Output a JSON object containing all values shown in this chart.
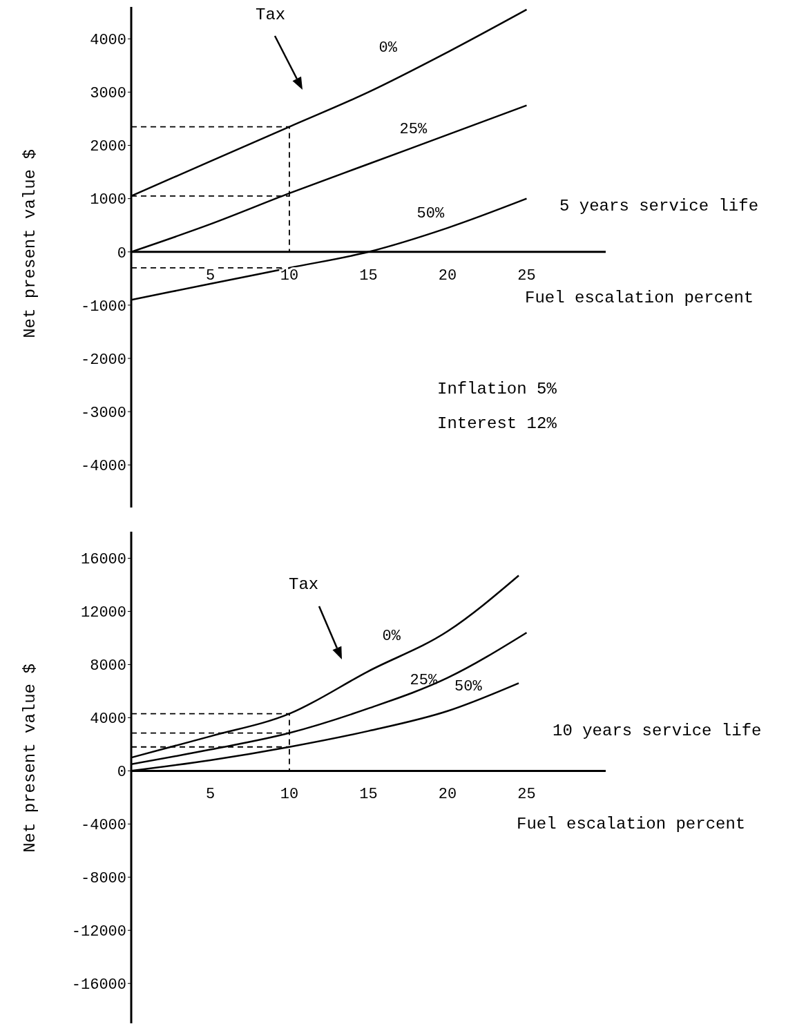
{
  "chart_data": [
    {
      "type": "line",
      "xlabel": "Fuel escalation percent",
      "ylabel": "Net present value $",
      "xlim": [
        0,
        30
      ],
      "xticks": [
        5,
        10,
        15,
        20,
        25
      ],
      "ylim": [
        -4800,
        4600
      ],
      "yticks": [
        -4000,
        -3000,
        -2000,
        -1000,
        0,
        1000,
        2000,
        3000,
        4000
      ],
      "grid": false,
      "legend": false,
      "marker": "none",
      "annotations": [
        "Tax",
        "5 years service life",
        "Inflation 5%",
        "Interest 12%"
      ],
      "series": [
        {
          "name": "0%",
          "color": "#000000",
          "x": [
            0,
            5,
            10,
            15,
            20,
            25
          ],
          "values": [
            1050,
            1700,
            2350,
            3000,
            3750,
            4550
          ]
        },
        {
          "name": "25%",
          "color": "#000000",
          "x": [
            0,
            5,
            10,
            15,
            20,
            25
          ],
          "values": [
            0,
            520,
            1100,
            1650,
            2200,
            2750
          ]
        },
        {
          "name": "50%",
          "color": "#000000",
          "x": [
            0,
            5,
            10,
            15,
            20,
            25
          ],
          "values": [
            -900,
            -600,
            -300,
            0,
            450,
            1000
          ]
        },
        {
          "color": "#000000",
          "line_style": "dashed",
          "x": [
            0,
            10,
            10
          ],
          "values": [
            2350,
            2350,
            0
          ]
        },
        {
          "color": "#000000",
          "line_style": "dashed",
          "x": [
            0,
            10
          ],
          "values": [
            1050,
            1050
          ]
        },
        {
          "color": "#000000",
          "line_style": "dashed",
          "x": [
            0,
            10
          ],
          "values": [
            -300,
            -300
          ]
        }
      ]
    },
    {
      "type": "line",
      "xlabel": "Fuel escalation percent",
      "ylabel": "Net present value $",
      "xlim": [
        0,
        30
      ],
      "xticks": [
        5,
        10,
        15,
        20,
        25
      ],
      "ylim": [
        -19000,
        18000
      ],
      "yticks": [
        -16000,
        -12000,
        -8000,
        -4000,
        0,
        4000,
        8000,
        12000,
        16000
      ],
      "grid": false,
      "legend": false,
      "marker": "none",
      "annotations": [
        "Tax",
        "10 years service life"
      ],
      "series": [
        {
          "name": "0%",
          "color": "#000000",
          "x": [
            0,
            5,
            10,
            15,
            20,
            24.5
          ],
          "values": [
            1000,
            2600,
            4300,
            7500,
            10500,
            14700
          ]
        },
        {
          "name": "25%",
          "color": "#000000",
          "x": [
            0,
            5,
            10,
            15,
            20,
            25
          ],
          "values": [
            500,
            1600,
            2850,
            4700,
            7000,
            10400
          ]
        },
        {
          "name": "50%",
          "color": "#000000",
          "x": [
            0,
            5,
            10,
            15,
            20,
            24.5
          ],
          "values": [
            0,
            800,
            1800,
            3000,
            4500,
            6600
          ]
        },
        {
          "color": "#000000",
          "line_style": "dashed",
          "x": [
            0,
            10,
            10
          ],
          "values": [
            4300,
            4300,
            0
          ]
        },
        {
          "color": "#000000",
          "line_style": "dashed",
          "x": [
            0,
            10
          ],
          "values": [
            2850,
            2850
          ]
        },
        {
          "color": "#000000",
          "line_style": "dashed",
          "x": [
            0,
            10
          ],
          "values": [
            1800,
            1800
          ]
        }
      ]
    }
  ]
}
